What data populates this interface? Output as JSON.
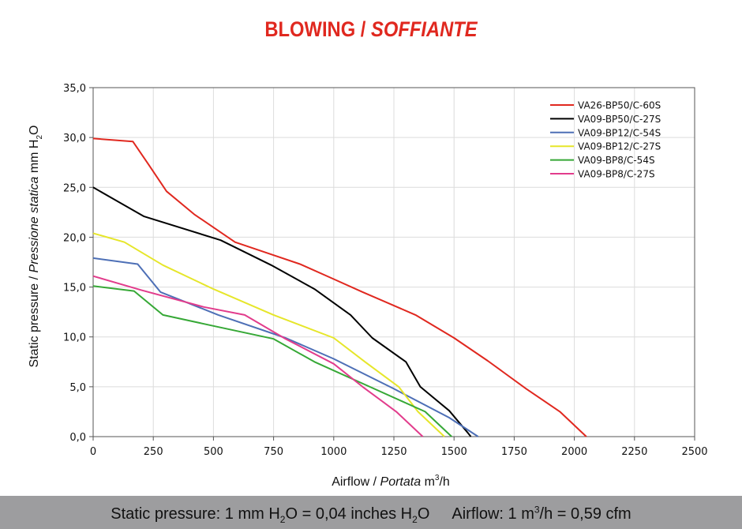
{
  "title": {
    "part1": "BLOWING / ",
    "part2": "SOFFIANTE"
  },
  "footer": {
    "pressure_a": "Static pressure: 1 mm H",
    "pressure_sub1": "2",
    "pressure_b": "O = 0,04 inches H",
    "pressure_sub2": "2",
    "pressure_c": "O",
    "airflow_a": "Airflow: 1 m",
    "airflow_sup": "3",
    "airflow_b": "/h = 0,59 cfm"
  },
  "chart_data": {
    "type": "line",
    "xlabel_a": "Airflow / ",
    "xlabel_b": "Portata",
    "xlabel_c": " m",
    "xlabel_sup": "3",
    "xlabel_d": "/h",
    "ylabel_a": "Static pressure / ",
    "ylabel_b": "Pressione statica",
    "ylabel_c": " mm H",
    "ylabel_sub": "2",
    "ylabel_d": "O",
    "xlim": [
      0,
      2500
    ],
    "ylim": [
      0,
      35
    ],
    "xticks": [
      "0",
      "250",
      "500",
      "750",
      "1000",
      "1250",
      "1500",
      "1750",
      "2000",
      "2250",
      "2500"
    ],
    "yticks": [
      "0,0",
      "5,0",
      "10,0",
      "15,0",
      "20,0",
      "25,0",
      "30,0",
      "35,0"
    ],
    "grid": true,
    "legend_position": "top-right",
    "series": [
      {
        "name": "VA26-BP50/C-60S",
        "color": "#e0281f",
        "x": [
          0,
          165,
          230,
          305,
          420,
          590,
          750,
          860,
          1000,
          1120,
          1340,
          1500,
          1640,
          1800,
          1940,
          2050
        ],
        "y": [
          29.9,
          29.6,
          27.3,
          24.6,
          22.3,
          19.5,
          18.2,
          17.3,
          15.8,
          14.5,
          12.2,
          9.9,
          7.6,
          4.8,
          2.5,
          0
        ]
      },
      {
        "name": "VA09-BP50/C-27S",
        "color": "#000000",
        "x": [
          0,
          210,
          530,
          740,
          920,
          1070,
          1160,
          1300,
          1360,
          1480,
          1560,
          1570
        ],
        "y": [
          25.0,
          22.1,
          19.7,
          17.2,
          14.8,
          12.2,
          9.9,
          7.5,
          5.0,
          2.6,
          0.3,
          0
        ]
      },
      {
        "name": "VA09-BP12/C-54S",
        "color": "#4d6fb6",
        "x": [
          0,
          185,
          280,
          520,
          800,
          1000,
          1250,
          1480,
          1600
        ],
        "y": [
          17.9,
          17.3,
          14.5,
          12.2,
          9.9,
          7.8,
          4.8,
          1.9,
          0
        ]
      },
      {
        "name": "VA09-BP12/C-27S",
        "color": "#e6e62a",
        "x": [
          0,
          130,
          290,
          500,
          750,
          1000,
          1130,
          1270,
          1350,
          1460
        ],
        "y": [
          20.4,
          19.5,
          17.2,
          14.8,
          12.2,
          9.9,
          7.5,
          5.0,
          2.5,
          0
        ]
      },
      {
        "name": "VA09-BP8/C-54S",
        "color": "#36a836",
        "x": [
          0,
          170,
          290,
          500,
          750,
          920,
          1150,
          1380,
          1490
        ],
        "y": [
          15.1,
          14.6,
          12.2,
          11.1,
          9.8,
          7.5,
          5.0,
          2.5,
          0
        ]
      },
      {
        "name": "VA09-BP8/C-27S",
        "color": "#e23c8c",
        "x": [
          0,
          200,
          460,
          630,
          800,
          1000,
          1120,
          1260,
          1370
        ],
        "y": [
          16.1,
          14.7,
          13.0,
          12.2,
          9.8,
          7.3,
          5.0,
          2.5,
          0
        ]
      }
    ]
  }
}
